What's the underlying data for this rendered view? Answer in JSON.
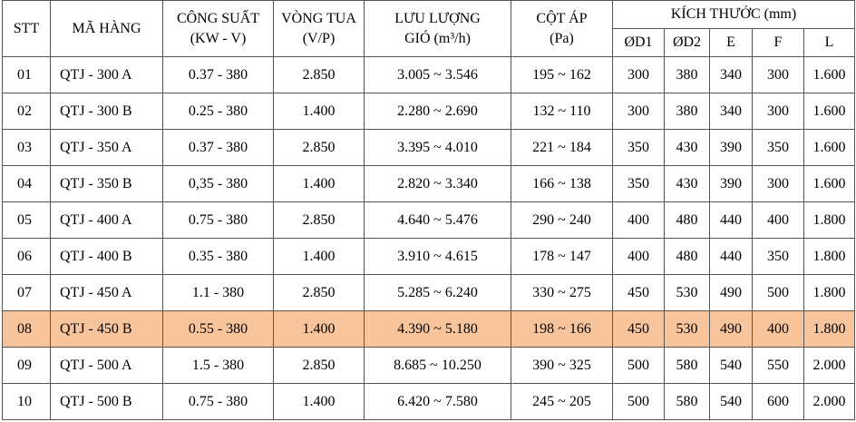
{
  "table": {
    "header_top": [
      "STT",
      "MÃ HÀNG",
      "CÔNG SUẤT",
      "VÒNG TUA",
      "LƯU LƯỢNG",
      "CỘT ÁP",
      "KÍCH THƯỚC (mm)"
    ],
    "header_sub": [
      "(KW - V)",
      "(V/P)",
      "GIÓ (m³/h)",
      "(Pa)"
    ],
    "header_dims": [
      "ØD1",
      "ØD2",
      "E",
      "F",
      "L"
    ],
    "rows": [
      [
        "01",
        "QTJ - 300 A",
        "0.37 - 380",
        "2.850",
        "3.005 ~ 3.546",
        "195 ~ 162",
        "300",
        "380",
        "340",
        "300",
        "1.600"
      ],
      [
        "02",
        "QTJ - 300 B",
        "0.25 - 380",
        "1.400",
        "2.280 ~ 2.690",
        "132 ~ 110",
        "300",
        "380",
        "340",
        "300",
        "1.600"
      ],
      [
        "03",
        "QTJ - 350 A",
        "0.37 - 380",
        "2.850",
        "3.395 ~ 4.010",
        "221 ~ 184",
        "350",
        "430",
        "390",
        "350",
        "1.600"
      ],
      [
        "04",
        "QTJ - 350 B",
        "0,35 - 380",
        "1.400",
        "2.820 ~ 3.340",
        "166 ~ 138",
        "350",
        "430",
        "390",
        "300",
        "1.600"
      ],
      [
        "05",
        "QTJ - 400 A",
        "0.75 - 380",
        "2.850",
        "4.640 ~ 5.476",
        "290 ~ 240",
        "400",
        "480",
        "440",
        "400",
        "1.800"
      ],
      [
        "06",
        "QTJ - 400 B",
        "0.35 - 380",
        "1.400",
        "3.910 ~ 4.615",
        "178 ~ 147",
        "400",
        "480",
        "440",
        "350",
        "1.800"
      ],
      [
        "07",
        "QTJ - 450 A",
        "1.1 - 380",
        "2.850",
        "5.285 ~ 6.240",
        "330 ~ 275",
        "450",
        "530",
        "490",
        "500",
        "1.800"
      ],
      [
        "08",
        "QTJ - 450 B",
        "0.55 - 380",
        "1.400",
        "4.390 ~ 5.180",
        "198 ~ 166",
        "450",
        "530",
        "490",
        "400",
        "1.800"
      ],
      [
        "09",
        "QTJ - 500 A",
        "1.5 - 380",
        "2.850",
        "8.685 ~ 10.250",
        "390 ~ 325",
        "500",
        "580",
        "540",
        "550",
        "2.000"
      ],
      [
        "10",
        "QTJ - 500 B",
        "0.75 - 380",
        "1.400",
        "6.420 ~ 7.580",
        "245 ~ 205",
        "500",
        "580",
        "540",
        "600",
        "2.000"
      ]
    ]
  }
}
